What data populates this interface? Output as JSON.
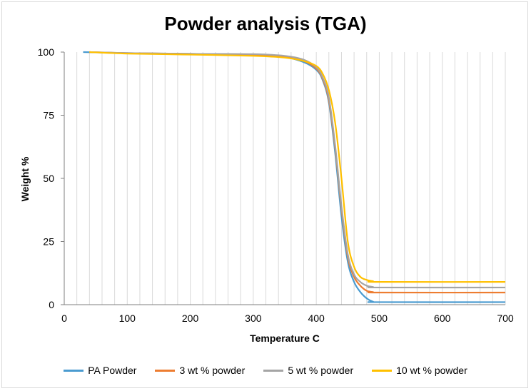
{
  "chart_data": {
    "type": "line",
    "title": "Powder analysis (TGA)",
    "xlabel": "Temperature C",
    "ylabel": "Weight %",
    "xlim": [
      0,
      700
    ],
    "ylim": [
      0,
      100
    ],
    "xticks": [
      "0",
      "100",
      "200",
      "300",
      "400",
      "500",
      "600",
      "700"
    ],
    "yticks": [
      "0",
      "25",
      "50",
      "75",
      "100"
    ],
    "grid": "vertical",
    "legend_position": "bottom",
    "series": [
      {
        "name": "PA Powder",
        "color": "#4A9BD0",
        "x": [
          30,
          100,
          200,
          300,
          350,
          380,
          400,
          410,
          420,
          430,
          440,
          450,
          460,
          470,
          480,
          490,
          500,
          700
        ],
        "y": [
          100,
          99.6,
          99.3,
          99,
          98,
          96,
          93,
          89,
          80,
          60,
          35,
          17,
          9,
          5,
          2.5,
          1.2,
          1,
          1
        ]
      },
      {
        "name": "3 wt % powder",
        "color": "#ED7D31",
        "x": [
          40,
          100,
          200,
          300,
          350,
          380,
          400,
          410,
          420,
          430,
          440,
          450,
          460,
          470,
          480,
          490,
          500,
          700
        ],
        "y": [
          100,
          99.6,
          99.3,
          99,
          98.2,
          96.5,
          93.5,
          89.5,
          81,
          62,
          38,
          19,
          11,
          7.5,
          5.5,
          5,
          4.8,
          4.8
        ]
      },
      {
        "name": "5 wt % powder",
        "color": "#A5A5A5",
        "x": [
          40,
          100,
          200,
          300,
          350,
          380,
          400,
          410,
          420,
          430,
          440,
          450,
          460,
          470,
          480,
          490,
          500,
          700
        ],
        "y": [
          100,
          99.6,
          99.3,
          99.2,
          98.5,
          97,
          94,
          90,
          82,
          63,
          39,
          20,
          12,
          9,
          7.5,
          7,
          6.8,
          6.8
        ]
      },
      {
        "name": "10 wt % powder",
        "color": "#FFC000",
        "x": [
          40,
          100,
          200,
          300,
          350,
          380,
          400,
          410,
          420,
          430,
          440,
          450,
          460,
          470,
          480,
          490,
          500,
          700
        ],
        "y": [
          100,
          99.4,
          99,
          98.5,
          97.8,
          96.5,
          94.5,
          91.5,
          85,
          72,
          50,
          25,
          15,
          11,
          9.8,
          9.3,
          9,
          9
        ]
      }
    ]
  }
}
